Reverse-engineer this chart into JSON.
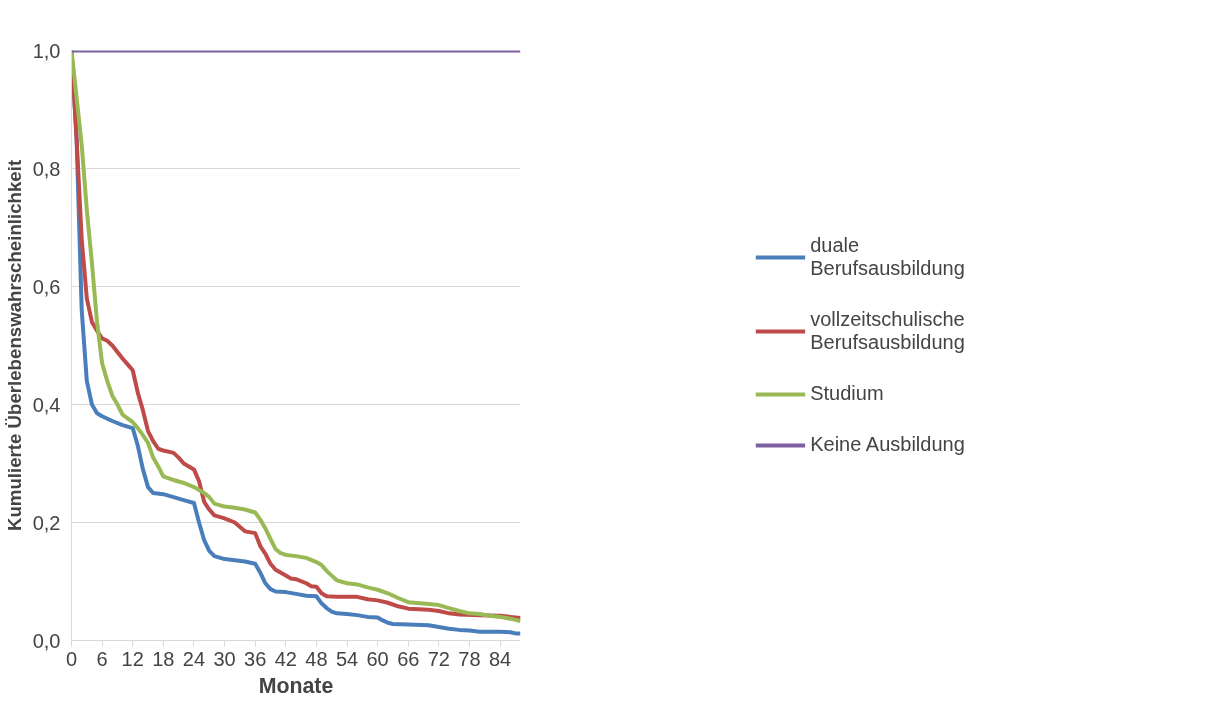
{
  "chart_data": {
    "type": "line",
    "xlabel": "Monate",
    "ylabel": "Kumulierte Überlebenswahrscheinlichkeit",
    "xlim": [
      0,
      88
    ],
    "xticks": [
      0,
      6,
      12,
      18,
      24,
      30,
      36,
      42,
      48,
      54,
      60,
      66,
      72,
      78,
      84
    ],
    "ylim": [
      0,
      1
    ],
    "yticks": [
      {
        "value": 0,
        "label": "0,0"
      },
      {
        "value": 0.2,
        "label": "0,2"
      },
      {
        "value": 0.4,
        "label": "0,4"
      },
      {
        "value": 0.6,
        "label": "0,6"
      },
      {
        "value": 0.8,
        "label": "0,8"
      },
      {
        "value": 1,
        "label": "1,0"
      }
    ],
    "grid": "y",
    "legend": "right",
    "marker": "none",
    "line_style": "solid",
    "series": [
      {
        "name": "duale Berufsausbildung",
        "color": "#4a7ebb",
        "x": [
          0,
          1,
          2,
          3,
          4,
          5,
          6,
          8,
          10,
          12,
          13,
          14,
          15,
          16,
          18,
          20,
          22,
          24,
          25,
          26,
          27,
          28,
          30,
          32,
          34,
          36,
          37,
          38,
          39,
          40,
          42,
          44,
          46,
          48,
          49,
          50,
          51,
          52,
          54,
          56,
          58,
          60,
          61,
          62,
          63,
          66,
          70,
          72,
          74,
          76,
          78,
          80,
          84,
          86,
          87,
          88
        ],
        "values": [
          1.0,
          0.85,
          0.56,
          0.44,
          0.4,
          0.385,
          0.38,
          0.372,
          0.365,
          0.36,
          0.33,
          0.29,
          0.26,
          0.25,
          0.248,
          0.243,
          0.238,
          0.233,
          0.2,
          0.17,
          0.152,
          0.143,
          0.138,
          0.136,
          0.134,
          0.13,
          0.115,
          0.097,
          0.087,
          0.083,
          0.082,
          0.079,
          0.076,
          0.075,
          0.063,
          0.055,
          0.049,
          0.046,
          0.045,
          0.043,
          0.04,
          0.039,
          0.034,
          0.03,
          0.028,
          0.027,
          0.026,
          0.023,
          0.02,
          0.018,
          0.017,
          0.015,
          0.015,
          0.014,
          0.012,
          0.012
        ]
      },
      {
        "name": "vollzeitschulische Berufsausbildung",
        "color": "#be4b48",
        "x": [
          0,
          1,
          2,
          3,
          4,
          5,
          6,
          7,
          8,
          10,
          11,
          12,
          13,
          14,
          15,
          16,
          17,
          18,
          20,
          21,
          22,
          24,
          25,
          26,
          27,
          28,
          30,
          32,
          34,
          36,
          37,
          38,
          39,
          40,
          42,
          43,
          44,
          46,
          47,
          48,
          49,
          50,
          52,
          56,
          58,
          60,
          62,
          64,
          66,
          70,
          72,
          74,
          76,
          80,
          84,
          86,
          88
        ],
        "values": [
          1.0,
          0.85,
          0.68,
          0.58,
          0.54,
          0.525,
          0.512,
          0.508,
          0.5,
          0.478,
          0.468,
          0.458,
          0.42,
          0.39,
          0.355,
          0.338,
          0.325,
          0.322,
          0.318,
          0.31,
          0.3,
          0.29,
          0.27,
          0.235,
          0.222,
          0.212,
          0.207,
          0.2,
          0.185,
          0.182,
          0.16,
          0.147,
          0.13,
          0.12,
          0.11,
          0.105,
          0.104,
          0.097,
          0.092,
          0.091,
          0.08,
          0.075,
          0.074,
          0.074,
          0.07,
          0.068,
          0.064,
          0.058,
          0.054,
          0.052,
          0.05,
          0.046,
          0.044,
          0.043,
          0.042,
          0.04,
          0.038
        ]
      },
      {
        "name": "Studium",
        "color": "#98b954",
        "x": [
          0,
          2,
          3,
          4,
          5,
          6,
          7,
          8,
          9,
          10,
          12,
          13,
          14,
          15,
          16,
          17,
          18,
          20,
          22,
          24,
          26,
          27,
          28,
          30,
          32,
          34,
          36,
          37,
          38,
          39,
          40,
          41,
          42,
          44,
          46,
          48,
          49,
          50,
          51,
          52,
          54,
          56,
          58,
          60,
          62,
          64,
          66,
          70,
          72,
          74,
          76,
          78,
          80,
          82,
          84,
          86,
          88
        ],
        "values": [
          1.0,
          0.84,
          0.73,
          0.64,
          0.54,
          0.47,
          0.44,
          0.415,
          0.4,
          0.383,
          0.37,
          0.36,
          0.348,
          0.335,
          0.31,
          0.295,
          0.278,
          0.272,
          0.267,
          0.26,
          0.25,
          0.243,
          0.232,
          0.227,
          0.225,
          0.222,
          0.217,
          0.205,
          0.19,
          0.172,
          0.155,
          0.148,
          0.145,
          0.143,
          0.14,
          0.133,
          0.128,
          0.118,
          0.11,
          0.102,
          0.097,
          0.095,
          0.09,
          0.086,
          0.08,
          0.072,
          0.065,
          0.062,
          0.06,
          0.055,
          0.05,
          0.046,
          0.045,
          0.042,
          0.04,
          0.037,
          0.033
        ]
      },
      {
        "name": "Keine Ausbildung",
        "color": "#7d60a0",
        "x": [
          0,
          88
        ],
        "values": [
          1.0,
          1.0
        ]
      }
    ]
  }
}
